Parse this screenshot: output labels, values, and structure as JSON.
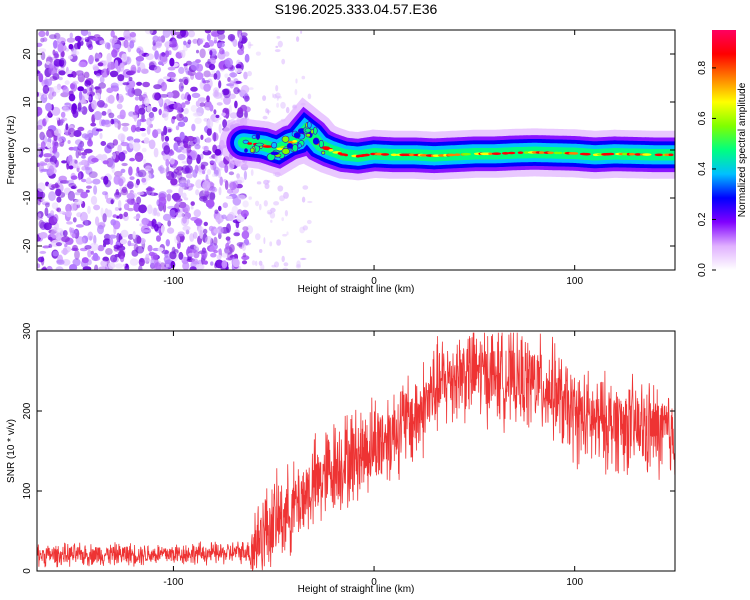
{
  "title": "S196.2025.333.04.57.E36",
  "chart_data": [
    {
      "type": "heatmap",
      "xlabel": "Height of straight line (km)",
      "ylabel": "Frequency (Hz)",
      "xlim": [
        -168,
        150
      ],
      "ylim": [
        -25,
        25
      ],
      "xticks": [
        -100,
        0,
        100
      ],
      "yticks": [
        -20,
        -10,
        0,
        10,
        20
      ],
      "colorbar": {
        "label": "Normalized spectral amplitude",
        "range": [
          0,
          0.95
        ],
        "ticks": [
          0.0,
          0.2,
          0.4,
          0.6,
          0.8
        ],
        "colors": [
          "#ffffff",
          "#e0b0ff",
          "#8000ff",
          "#0000ff",
          "#00c0ff",
          "#00ff80",
          "#80ff00",
          "#ffff00",
          "#ff8000",
          "#ff0000",
          "#ff0060"
        ]
      },
      "noise_region_x": [
        -168,
        -62
      ],
      "carrier_track": {
        "x": [
          -65,
          -55,
          -48,
          -42,
          -38,
          -34,
          -31,
          -27,
          -22,
          -15,
          -8,
          0,
          10,
          20,
          30,
          40,
          50,
          60,
          70,
          80,
          90,
          100,
          110,
          120,
          130,
          140,
          150
        ],
        "y": [
          1.5,
          1.0,
          0.0,
          1.5,
          2.0,
          4.0,
          3.0,
          1.0,
          0.0,
          -1.0,
          -1.3,
          -0.8,
          -1.0,
          -1.0,
          -1.2,
          -1.0,
          -0.8,
          -0.8,
          -0.6,
          -0.5,
          -0.6,
          -0.7,
          -1.0,
          -0.8,
          -0.9,
          -1.0,
          -1.0
        ]
      }
    },
    {
      "type": "line",
      "xlabel": "Height of straight line (km)",
      "ylabel": "SNR (10 * v/v)",
      "xlim": [
        -168,
        150
      ],
      "ylim": [
        0,
        300
      ],
      "xticks": [
        -100,
        0,
        100
      ],
      "yticks": [
        0,
        100,
        200,
        300
      ],
      "series": [
        {
          "color": "#ee3333",
          "x": [
            -168,
            -150,
            -130,
            -110,
            -90,
            -75,
            -62,
            -55,
            -45,
            -40,
            -35,
            -28,
            -20,
            -12,
            -5,
            0,
            5,
            10,
            15,
            20,
            25,
            30,
            40,
            50,
            60,
            70,
            80,
            90,
            95,
            100,
            110,
            120,
            130,
            140,
            150
          ],
          "y": [
            20,
            20,
            21,
            21,
            22,
            22,
            25,
            50,
            70,
            80,
            95,
            110,
            130,
            140,
            150,
            160,
            165,
            175,
            185,
            190,
            205,
            225,
            245,
            250,
            245,
            240,
            235,
            225,
            205,
            195,
            185,
            185,
            180,
            175,
            170
          ]
        }
      ]
    }
  ]
}
